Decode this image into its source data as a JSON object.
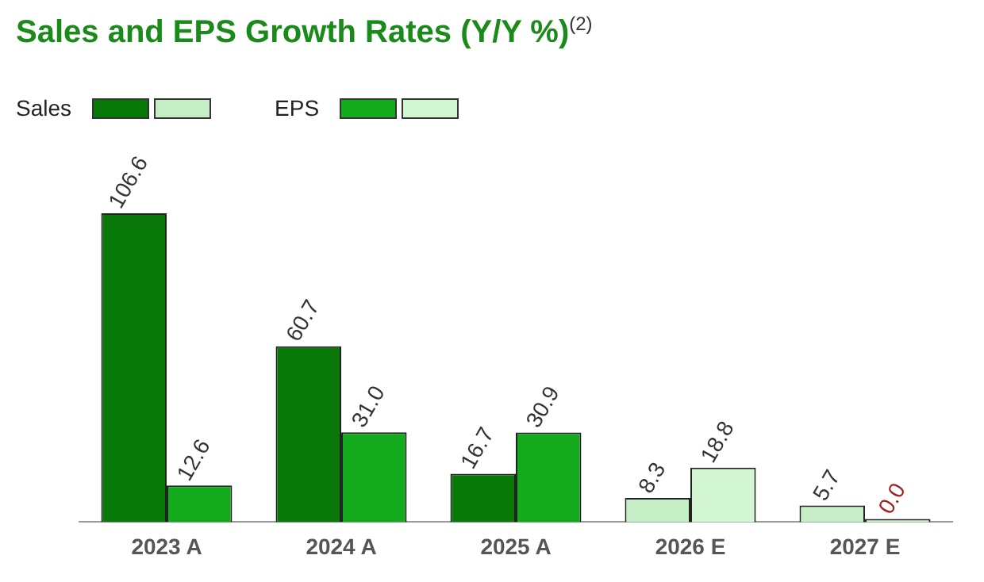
{
  "chart_data": {
    "type": "bar",
    "title": "Sales and EPS Growth Rates (Y/Y %)$^{(2)}$",
    "categories": [
      "2023 A",
      "2024 A",
      "2025 A",
      "2026 E",
      "2027 E"
    ],
    "series": [
      {
        "name": "Sales",
        "color": "#087808",
        "colors": [
          "#087808",
          "#087808",
          "#087808",
          "#c6eec6",
          "#c6eec6"
        ],
        "values": [
          106.6,
          60.7,
          16.7,
          8.3,
          5.7
        ],
        "value_labels": [
          "106.6",
          "60.7",
          "16.7",
          "8.3",
          "5.7"
        ]
      },
      {
        "name": "EPS",
        "color": "#14aa1e",
        "colors": [
          "#14aa1e",
          "#14aa1e",
          "#14aa1e",
          "#d2f7d2",
          "#d2f7d2"
        ],
        "values": [
          12.6,
          31.0,
          30.9,
          18.8,
          0.0
        ],
        "value_labels": [
          "12.6",
          "31.0",
          "30.9",
          "18.8",
          "0.0"
        ]
      }
    ],
    "legend": "top left",
    "grid": false
  }
}
